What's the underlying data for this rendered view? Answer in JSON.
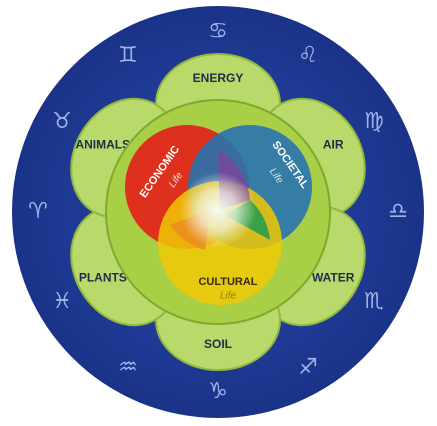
{
  "petals": [
    {
      "label": "ENERGY"
    },
    {
      "label": "AIR"
    },
    {
      "label": "WATER"
    },
    {
      "label": "SOIL"
    },
    {
      "label": "PLANTS"
    },
    {
      "label": "ANIMALS"
    }
  ],
  "circles": [
    {
      "label": "ECONOMIC",
      "sublabel": "Life"
    },
    {
      "label": "SOCIETAL",
      "sublabel": "Life"
    },
    {
      "label": "CULTURAL",
      "sublabel": "Life"
    }
  ],
  "zodiac": [
    "♋",
    "♌",
    "♍",
    "♎",
    "♏",
    "♐",
    "♑",
    "♒",
    "♓",
    "♈",
    "♉",
    "♊"
  ]
}
